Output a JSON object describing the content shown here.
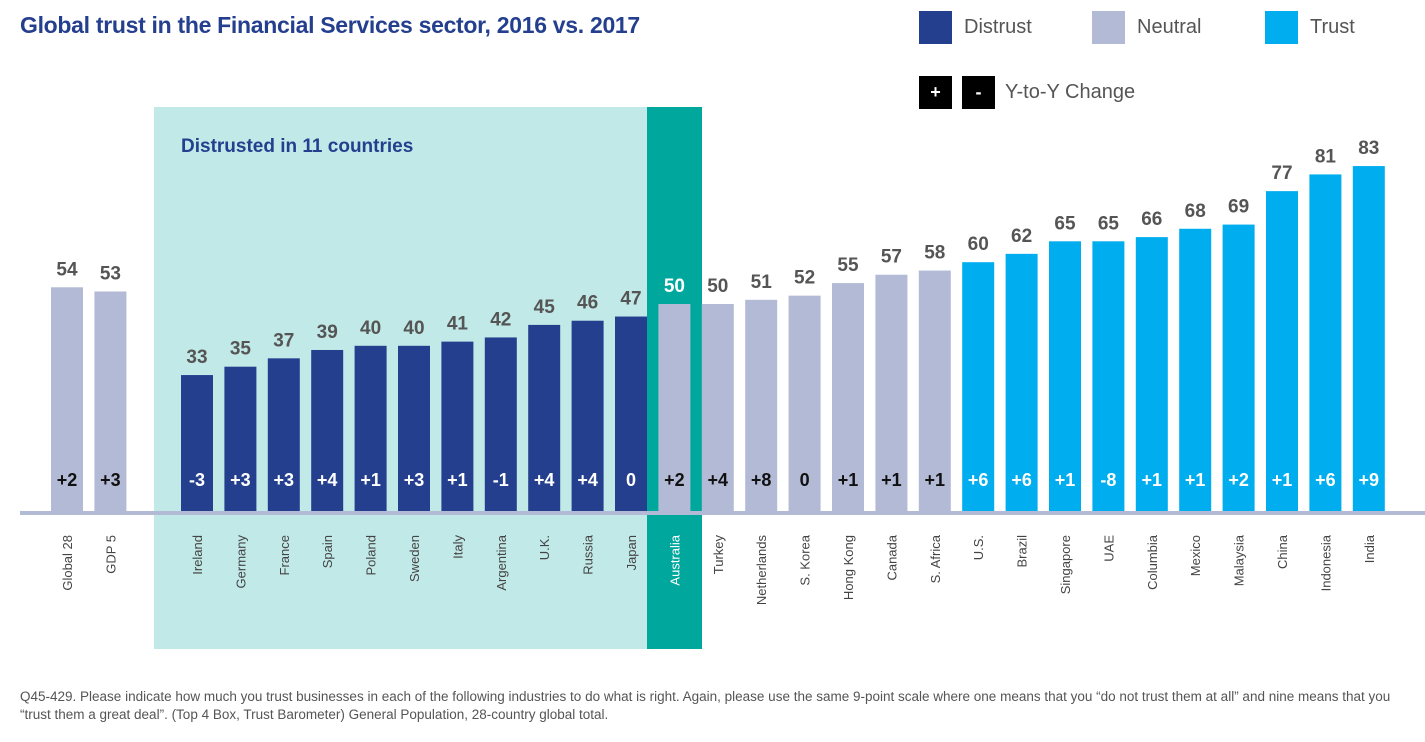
{
  "title": "Global trust in the Financial Services sector, 2016 vs. 2017",
  "legend": {
    "distrust": "Distrust",
    "neutral": "Neutral",
    "trust": "Trust",
    "plus": "+",
    "minus": "-",
    "change": "Y-to-Y Change"
  },
  "colors": {
    "distrust": "#253f8f",
    "neutral": "#b3bad6",
    "trust": "#00adee",
    "highlight": "#c1e9e7",
    "australia": "#00a79d",
    "axis": "#b3bad6"
  },
  "highlight_label": "Distrusted in 11 countries",
  "footnote": "Q45-429. Please indicate how much you trust businesses in each of the following industries to do what is right. Again, please use the same 9-point scale where one means that you “do not trust them at all” and nine means that you “trust them a great deal”. (Top 4 Box, Trust Barometer) General Population, 28-country global total.",
  "chart_data": {
    "type": "bar",
    "title": "Global trust in the Financial Services sector, 2016 vs. 2017",
    "ylim": [
      0,
      100
    ],
    "categories": [
      "Global 28",
      "GDP 5",
      "Ireland",
      "Germany",
      "France",
      "Spain",
      "Poland",
      "Sweden",
      "Italy",
      "Argentina",
      "U.K.",
      "Russia",
      "Japan",
      "Australia",
      "Turkey",
      "Netherlands",
      "S. Korea",
      "Hong Kong",
      "Canada",
      "S. Africa",
      "U.S.",
      "Brazil",
      "Singapore",
      "UAE",
      "Columbia",
      "Mexico",
      "Malaysia",
      "China",
      "Indonesia",
      "India"
    ],
    "values": [
      54,
      53,
      33,
      35,
      37,
      39,
      40,
      40,
      41,
      42,
      45,
      46,
      47,
      50,
      50,
      51,
      52,
      55,
      57,
      58,
      60,
      62,
      65,
      65,
      66,
      68,
      69,
      77,
      81,
      83
    ],
    "changes": [
      "+2",
      "+3",
      "-3",
      "+3",
      "+3",
      "+4",
      "+1",
      "+3",
      "+1",
      "-1",
      "+4",
      "+4",
      "0",
      "+2",
      "+4",
      "+8",
      "0",
      "+1",
      "+1",
      "+1",
      "+6",
      "+6",
      "+1",
      "-8",
      "+1",
      "+1",
      "+2",
      "+1",
      "+6",
      "+9"
    ],
    "level": [
      "neutral",
      "neutral",
      "distrust",
      "distrust",
      "distrust",
      "distrust",
      "distrust",
      "distrust",
      "distrust",
      "distrust",
      "distrust",
      "distrust",
      "distrust",
      "neutral",
      "neutral",
      "neutral",
      "neutral",
      "neutral",
      "neutral",
      "neutral",
      "trust",
      "trust",
      "trust",
      "trust",
      "trust",
      "trust",
      "trust",
      "trust",
      "trust",
      "trust"
    ]
  }
}
